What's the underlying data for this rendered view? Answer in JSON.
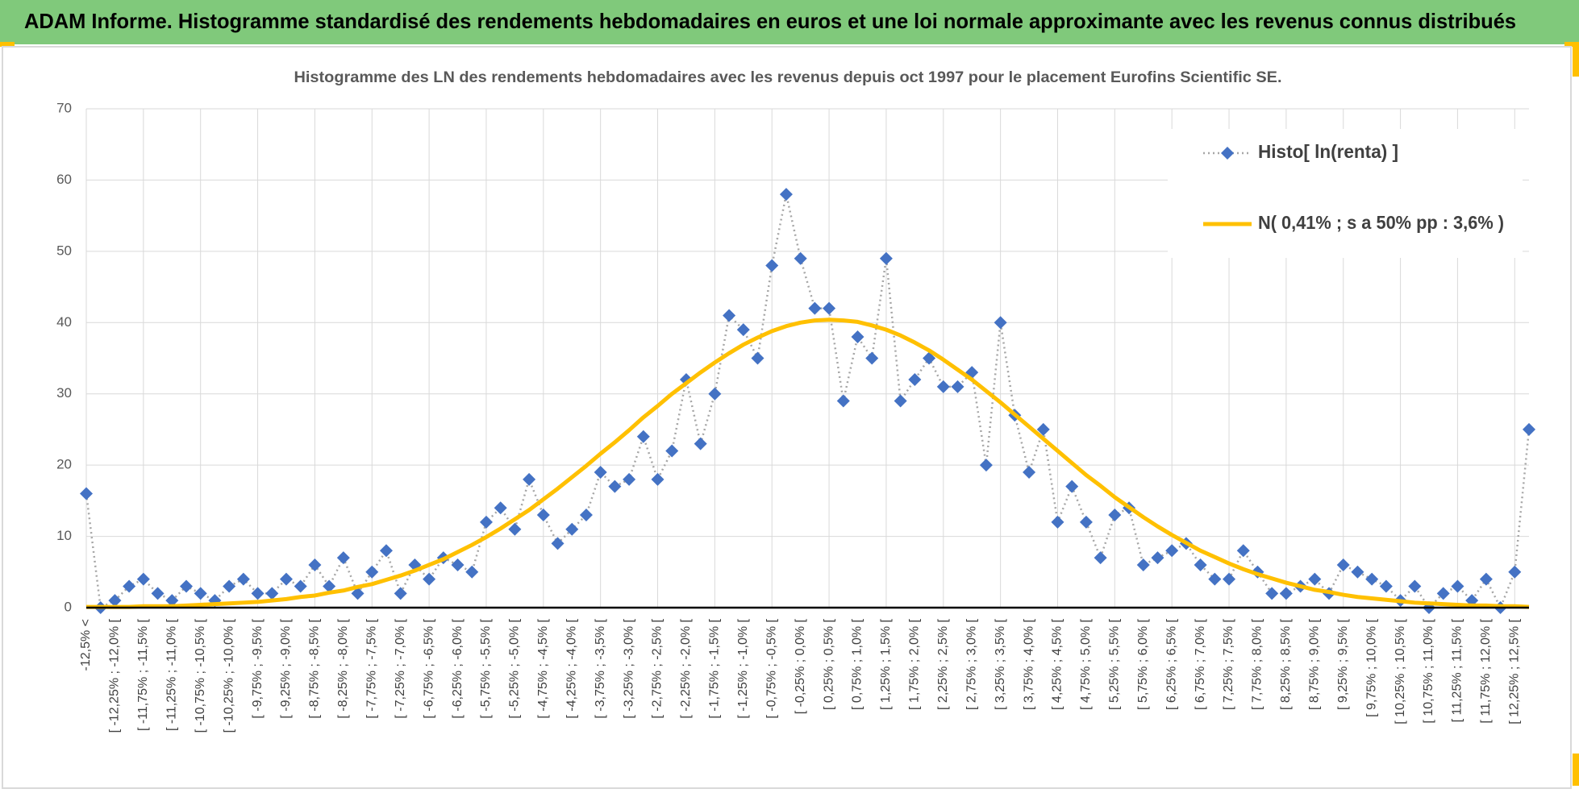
{
  "header": {
    "title": "ADAM Informe. Histogramme standardisé des rendements hebdomadaires en euros et une loi normale approximante avec les revenus connus distribués"
  },
  "chart_data": {
    "type": "line",
    "title": "Histogramme des LN des rendements hebdomadaires avec les revenus depuis oct 1997 pour le placement Eurofins Scientific SE.",
    "categories": [
      "-12,5% <",
      null,
      "[ -12,25% ; -12,0% [",
      null,
      "[ -11,75% ; -11,5% [",
      null,
      "[ -11,25% ; -11,0% [",
      null,
      "[ -10,75% ; -10,5% [",
      null,
      "[ -10,25% ; -10,0% [",
      null,
      "[ -9,75% ; -9,5% [",
      null,
      "[ -9,25% ; -9,0% [",
      null,
      "[ -8,75% ; -8,5% [",
      null,
      "[ -8,25% ; -8,0% [",
      null,
      "[ -7,75% ; -7,5% [",
      null,
      "[ -7,25% ; -7,0% [",
      null,
      "[ -6,75% ; -6,5% [",
      null,
      "[ -6,25% ; -6,0% [",
      null,
      "[ -5,75% ; -5,5% [",
      null,
      "[ -5,25% ; -5,0% [",
      null,
      "[ -4,75% ; -4,5% [",
      null,
      "[ -4,25% ; -4,0% [",
      null,
      "[ -3,75% ; -3,5% [",
      null,
      "[ -3,25% ; -3,0% [",
      null,
      "[ -2,75% ; -2,5% [",
      null,
      "[ -2,25% ; -2,0% [",
      null,
      "[ -1,75% ; -1,5% [",
      null,
      "[ -1,25% ; -1,0% [",
      null,
      "[ -0,75% ; -0,5% [",
      null,
      "[ -0,25% ; 0,0% [",
      null,
      "[ 0,25% ; 0,5% [",
      null,
      "[ 0,75% ; 1,0% [",
      null,
      "[ 1,25% ; 1,5% [",
      null,
      "[ 1,75% ; 2,0% [",
      null,
      "[ 2,25% ; 2,5% [",
      null,
      "[ 2,75% ; 3,0% [",
      null,
      "[ 3,25% ; 3,5% [",
      null,
      "[ 3,75% ; 4,0% [",
      null,
      "[ 4,25% ; 4,5% [",
      null,
      "[ 4,75% ; 5,0% [",
      null,
      "[ 5,25% ; 5,5% [",
      null,
      "[ 5,75% ; 6,0% [",
      null,
      "[ 6,25% ; 6,5% [",
      null,
      "[ 6,75% ; 7,0% [",
      null,
      "[ 7,25% ; 7,5% [",
      null,
      "[ 7,75% ; 8,0% [",
      null,
      "[ 8,25% ; 8,5% [",
      null,
      "[ 8,75% ; 9,0% [",
      null,
      "[ 9,25% ; 9,5% [",
      null,
      "[ 9,75% ; 10,0% [",
      null,
      "[ 10,25% ; 10,5% [",
      null,
      "[ 10,75% ; 11,0% [",
      null,
      "[ 11,25% ; 11,5% [",
      null,
      "[ 11,75% ; 12,0% [",
      null,
      "[ 12,25% ; 12,5% [",
      null
    ],
    "series": [
      {
        "name": "Histo[ ln(renta) ]",
        "color": "#4472c4",
        "line_color": "#a6a6a6",
        "line_style": "dotted",
        "marker": "diamond",
        "values": [
          16,
          0,
          1,
          3,
          4,
          2,
          1,
          3,
          2,
          1,
          3,
          4,
          2,
          2,
          4,
          3,
          6,
          3,
          7,
          2,
          5,
          8,
          2,
          6,
          4,
          7,
          6,
          5,
          12,
          14,
          11,
          18,
          13,
          9,
          11,
          13,
          19,
          17,
          18,
          24,
          18,
          22,
          32,
          23,
          30,
          41,
          39,
          35,
          48,
          58,
          49,
          42,
          42,
          29,
          38,
          35,
          49,
          29,
          32,
          35,
          31,
          31,
          33,
          20,
          40,
          27,
          19,
          25,
          12,
          17,
          12,
          7,
          13,
          14,
          6,
          7,
          8,
          9,
          6,
          4,
          4,
          8,
          5,
          2,
          2,
          3,
          4,
          2,
          6,
          5,
          4,
          3,
          1,
          3,
          0,
          2,
          3,
          1,
          4,
          0,
          5,
          25
        ]
      },
      {
        "name": "N( 0,41% ; s a 50% pp : 3,6% )",
        "color": "#ffc000",
        "line_style": "solid",
        "marker": "none",
        "values": [
          0.1,
          0.1,
          0.1,
          0.1,
          0.2,
          0.2,
          0.2,
          0.3,
          0.4,
          0.5,
          0.6,
          0.7,
          0.8,
          1.0,
          1.2,
          1.5,
          1.7,
          2.1,
          2.4,
          2.9,
          3.3,
          3.9,
          4.5,
          5.2,
          6.0,
          6.8,
          7.8,
          8.8,
          9.9,
          11.1,
          12.4,
          13.7,
          15.2,
          16.7,
          18.3,
          19.9,
          21.6,
          23.2,
          24.9,
          26.7,
          28.3,
          30.0,
          31.5,
          33.0,
          34.4,
          35.7,
          36.9,
          37.9,
          38.8,
          39.5,
          40.0,
          40.3,
          40.4,
          40.3,
          40.1,
          39.6,
          39.0,
          38.2,
          37.2,
          36.1,
          34.8,
          33.4,
          32.0,
          30.4,
          28.8,
          27.1,
          25.4,
          23.7,
          22.0,
          20.3,
          18.6,
          17.1,
          15.5,
          14.1,
          12.7,
          11.4,
          10.2,
          9.1,
          8.0,
          7.1,
          6.2,
          5.4,
          4.7,
          4.1,
          3.5,
          3.0,
          2.5,
          2.2,
          1.8,
          1.5,
          1.3,
          1.1,
          0.9,
          0.7,
          0.6,
          0.5,
          0.4,
          0.3,
          0.3,
          0.2,
          0.2,
          0.1
        ]
      }
    ],
    "ylim": [
      0,
      70
    ],
    "yticks": [
      0,
      10,
      20,
      30,
      40,
      50,
      60,
      70
    ],
    "grid": true,
    "legend": "upper right"
  }
}
